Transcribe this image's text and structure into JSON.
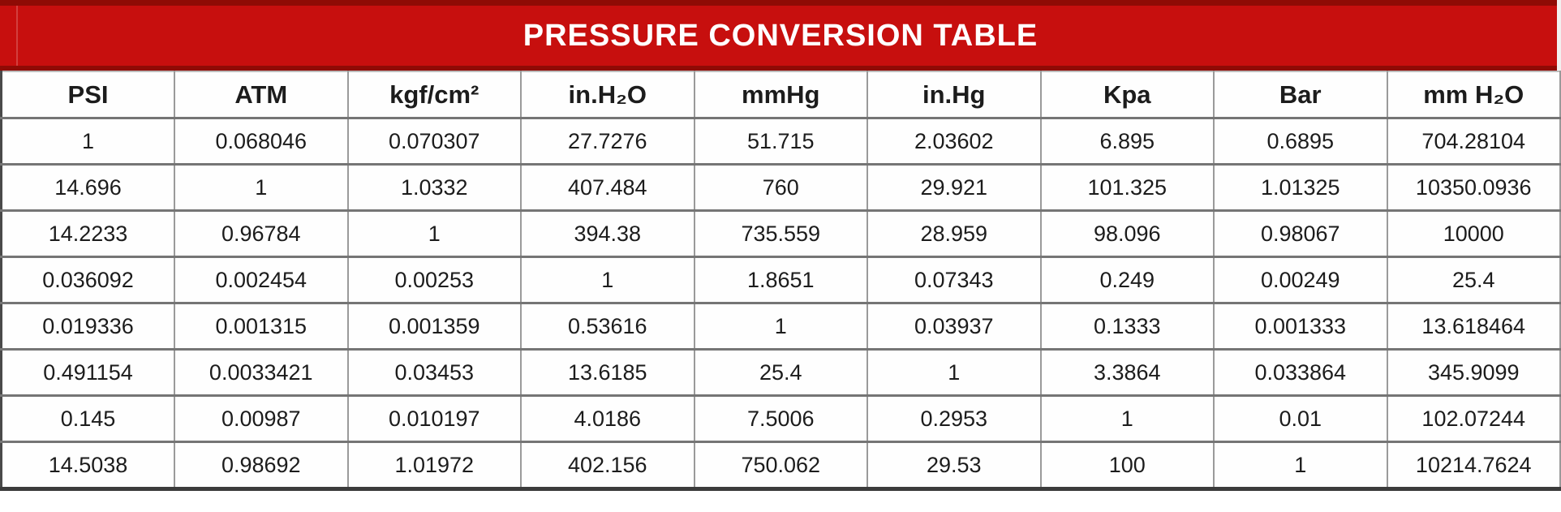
{
  "title": "PRESSURE CONVERSION TABLE",
  "colors": {
    "banner_red": "#c70f0e",
    "banner_dark_red": "#8f0b05",
    "title_text": "#ffffff",
    "cell_text": "#1c1c1c",
    "grid_line_vertical": "#9a9a9a",
    "grid_line_horizontal": "#757575",
    "outer_bottom_border": "#3b3b3b"
  },
  "chart_data": {
    "type": "table",
    "title": "PRESSURE CONVERSION TABLE",
    "columns": [
      "PSI",
      "ATM",
      "kgf/cm²",
      "in.H₂O",
      "mmHg",
      "in.Hg",
      "Kpa",
      "Bar",
      "mm H₂O"
    ],
    "rows": [
      [
        1,
        0.068046,
        0.070307,
        27.7276,
        51.715,
        2.03602,
        6.895,
        0.6895,
        704.28104
      ],
      [
        14.696,
        1,
        1.0332,
        407.484,
        760,
        29.921,
        101.325,
        1.01325,
        10350.0936
      ],
      [
        14.2233,
        0.96784,
        1,
        394.38,
        735.559,
        28.959,
        98.096,
        0.98067,
        10000
      ],
      [
        0.036092,
        0.002454,
        0.00253,
        1,
        1.8651,
        0.07343,
        0.249,
        0.00249,
        25.4
      ],
      [
        0.019336,
        0.001315,
        0.001359,
        0.53616,
        1,
        0.03937,
        0.1333,
        0.001333,
        13.618464
      ],
      [
        0.491154,
        0.0033421,
        0.03453,
        13.6185,
        25.4,
        1,
        3.3864,
        0.033864,
        345.9099
      ],
      [
        0.145,
        0.00987,
        0.010197,
        4.0186,
        7.5006,
        0.2953,
        1,
        0.01,
        102.07244
      ],
      [
        14.5038,
        0.98692,
        1.01972,
        402.156,
        750.062,
        29.53,
        100,
        1,
        10214.7624
      ]
    ]
  }
}
